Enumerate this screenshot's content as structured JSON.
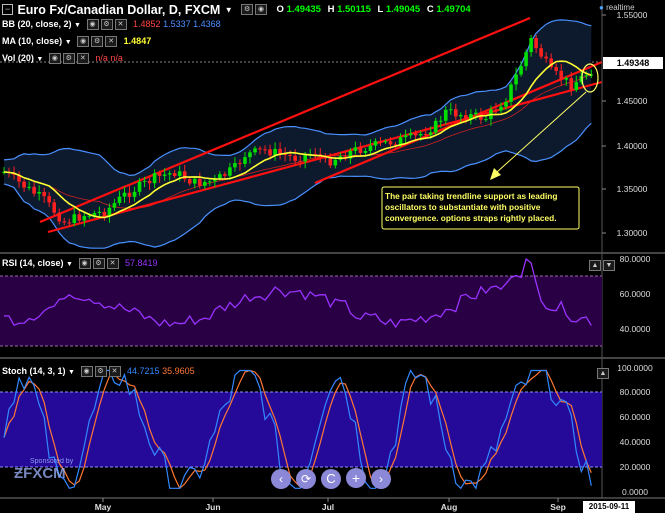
{
  "main": {
    "title": "Euro Fx/Canadian Dollar, D, FXCM",
    "ohlc": {
      "o_label": "O",
      "o": "1.49435",
      "h_label": "H",
      "h": "1.50115",
      "l_label": "L",
      "l": "1.49045",
      "c_label": "C",
      "c": "1.49704"
    },
    "realtime": "realtime",
    "bb": {
      "label": "BB (20, close, 2)",
      "v1": "1.4852",
      "v2": "1.5337",
      "v3": "1.4368"
    },
    "ma": {
      "label": "MA (10, close)",
      "v": "1.4847"
    },
    "vol": {
      "label": "Vol (20)",
      "v1": "n/a",
      "v2": "n/a"
    },
    "price_axis": [
      "1.55000",
      "1.50000",
      "1.45000",
      "1.40000",
      "1.35000",
      "1.30000"
    ],
    "current_price": "1.49348",
    "annotation": "The pair taking trendline support as leading oscillators to substantiate with positive convergence. options straps rightly placed."
  },
  "rsi": {
    "label": "RSI (14, close)",
    "value": "57.8419",
    "axis": [
      "80.0000",
      "60.0000",
      "40.0000"
    ]
  },
  "stoch": {
    "label": "Stoch (14, 3, 1)",
    "k": "44.7215",
    "d": "35.9605",
    "axis": [
      "100.0000",
      "80.0000",
      "60.0000",
      "40.0000",
      "20.0000",
      "0.0000"
    ]
  },
  "time_axis": [
    "May",
    "Jun",
    "Jul",
    "Aug",
    "Sep"
  ],
  "date_badge": "2015-09-11",
  "watermark": {
    "line1": "Sponsored by",
    "line2": "FXCM"
  },
  "nav_icons": [
    "prev-icon",
    "reset-icon",
    "zoom-out-icon",
    "zoom-in-icon",
    "next-icon"
  ],
  "colors": {
    "bull": "#00e000",
    "bear": "#ff2020",
    "bb": "#4a90ff",
    "ma": "#ffff33",
    "rsi": "#9933ff",
    "stoch_k": "#3388ff",
    "stoch_d": "#ff7733",
    "trend": "#ff1010",
    "callout": "#ffff66"
  }
}
